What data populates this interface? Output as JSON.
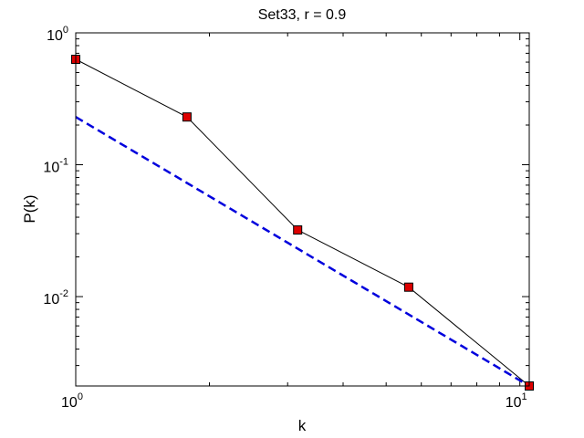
{
  "chart_data": {
    "type": "line",
    "title": "Set33, r = 0.9",
    "xlabel": "k",
    "ylabel": "P(k)",
    "xscale": "log",
    "yscale": "log",
    "xlim": [
      1,
      10.5
    ],
    "ylim": [
      0.0021,
      1
    ],
    "grid": false,
    "x_ticks": [
      {
        "value": 1,
        "base": "10",
        "exp": "0"
      },
      {
        "value": 10,
        "base": "10",
        "exp": "1"
      }
    ],
    "y_ticks": [
      {
        "value": 1,
        "base": "10",
        "exp": "0"
      },
      {
        "value": 0.1,
        "base": "10",
        "exp": "-1"
      },
      {
        "value": 0.01,
        "base": "10",
        "exp": "-2"
      }
    ],
    "series": [
      {
        "kind": "empirical",
        "color": "#000000",
        "marker_color": "#dd0000",
        "marker": "square",
        "x": [
          1,
          1.78,
          3.16,
          5.62,
          10.5
        ],
        "y": [
          0.63,
          0.23,
          0.032,
          0.0118,
          0.0021
        ]
      },
      {
        "kind": "fit",
        "color": "#0000dd",
        "style": "dashed",
        "x": [
          1,
          10.5
        ],
        "y": [
          0.23,
          0.0021
        ]
      }
    ]
  }
}
